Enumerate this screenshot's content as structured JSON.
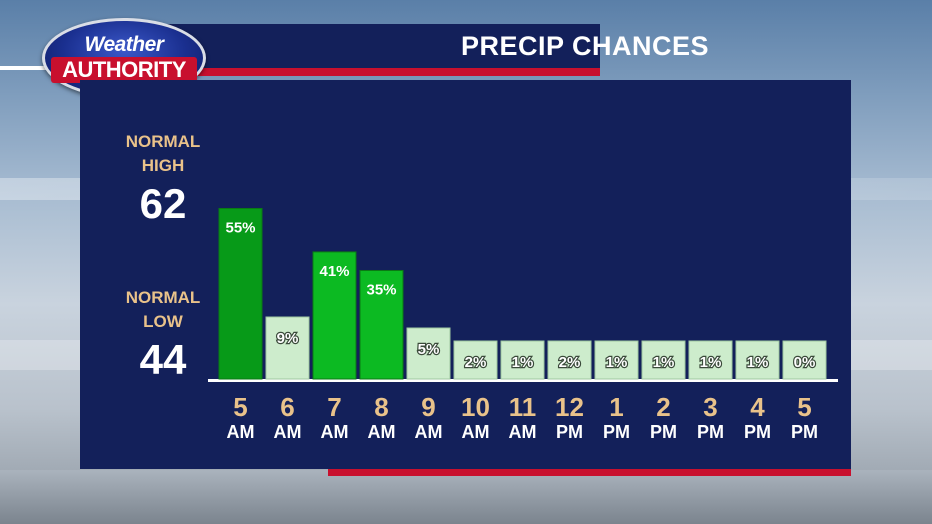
{
  "logo": {
    "line1": "Weather",
    "line2": "AUTHORITY"
  },
  "header": {
    "title": "PRECIP CHANCES"
  },
  "normals": {
    "high_label_1": "NORMAL",
    "high_label_2": "HIGH",
    "high_value": "62",
    "low_label_1": "NORMAL",
    "low_label_2": "LOW",
    "low_value": "44"
  },
  "colors": {
    "panel": "#13205a",
    "accent_red": "#c8102e",
    "axis_text": "#e9c28a",
    "bar_high": "#0aa51e",
    "bar_low": "#cdeccc"
  },
  "chart_data": {
    "type": "bar",
    "title": "PRECIP CHANCES",
    "categories": [
      "5 AM",
      "6 AM",
      "7 AM",
      "8 AM",
      "9 AM",
      "10 AM",
      "11 AM",
      "12 PM",
      "1 PM",
      "2 PM",
      "3 PM",
      "4 PM",
      "5 PM"
    ],
    "hours": [
      "5",
      "6",
      "7",
      "8",
      "9",
      "10",
      "11",
      "12",
      "1",
      "2",
      "3",
      "4",
      "5"
    ],
    "ampm": [
      "AM",
      "AM",
      "AM",
      "AM",
      "AM",
      "AM",
      "AM",
      "PM",
      "PM",
      "PM",
      "PM",
      "PM",
      "PM"
    ],
    "values": [
      55,
      9,
      41,
      35,
      5,
      2,
      1,
      2,
      1,
      1,
      1,
      1,
      0
    ],
    "labels": [
      "55%",
      "9%",
      "41%",
      "35%",
      "5%",
      "2%",
      "1%",
      "2%",
      "1%",
      "1%",
      "1%",
      "1%",
      "0%"
    ],
    "unit": "%",
    "ylim": [
      0,
      100
    ],
    "grid": false,
    "legend": "none"
  }
}
